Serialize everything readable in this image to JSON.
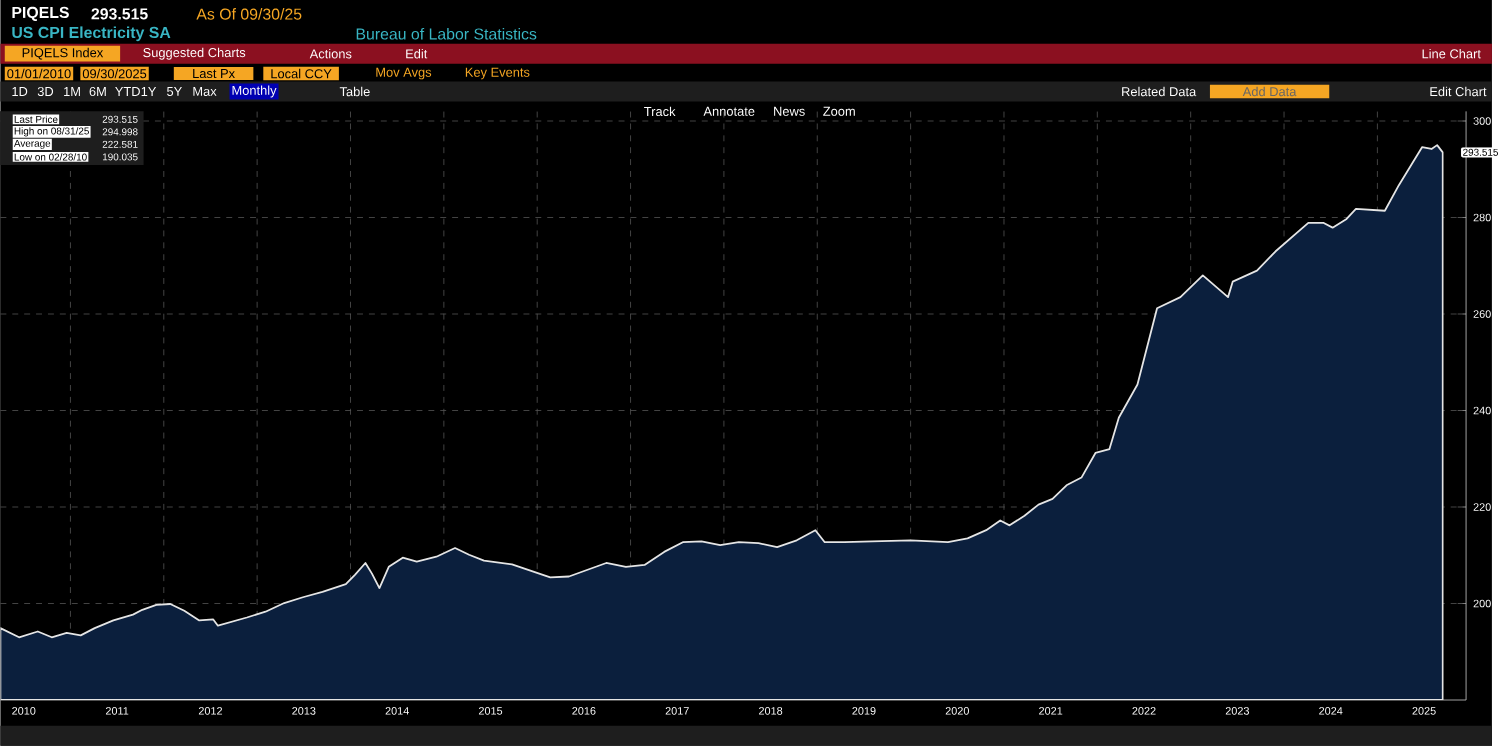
{
  "chart_data": {
    "type": "area",
    "title": "US CPI Electricity SA",
    "annotations": [
      "PIQELS",
      "293.515",
      "As Of 09/30/25",
      "Bureau of Labor Statistics",
      "PIQELS Index",
      "Suggested Charts",
      "Actions",
      "Edit",
      "Line Chart",
      "01/01/2010",
      "09/30/2025",
      "Last Px",
      "Local CCY",
      "Mov Avgs",
      "Key Events",
      "1D",
      "3D",
      "1M",
      "6M",
      "YTD",
      "1Y",
      "5Y",
      "Max",
      "Monthly",
      "Table",
      "Track",
      "Annotate",
      "News",
      "Zoom",
      "Related Data",
      "Add Data",
      "Edit Chart",
      "Last Price",
      "293.515",
      "High on 08/31/25",
      "294.998",
      "Average",
      "222.581",
      "Low on 02/28/10",
      "190.035",
      {
        "text": "293.515",
        "x": 2025.7,
        "y": 293.515
      }
    ],
    "series": [
      {
        "color": "#0b1f3d",
        "x": [
          2010.25,
          2010.45,
          2010.65,
          2010.8,
          2010.96,
          2011.11,
          2011.26,
          2011.46,
          2011.67,
          2011.77,
          2011.92,
          2012.07,
          2012.22,
          2012.38,
          2012.53,
          2012.58,
          2012.89,
          2013.09,
          2013.29,
          2013.49,
          2013.7,
          2013.95,
          2014.05,
          2014.16,
          2014.23,
          2014.31,
          2014.41,
          2014.56,
          2014.71,
          2014.92,
          2015.12,
          2015.27,
          2015.43,
          2015.73,
          2016.14,
          2016.34,
          2016.74,
          2016.95,
          2017.15,
          2017.36,
          2017.56,
          2017.76,
          2017.96,
          2018.16,
          2018.37,
          2018.57,
          2018.78,
          2018.98,
          2019.08,
          2019.29,
          2019.59,
          2020.0,
          2020.4,
          2020.61,
          2020.81,
          2020.96,
          2021.06,
          2021.22,
          2021.37,
          2021.52,
          2021.67,
          2021.83,
          2021.98,
          2022.13,
          2022.23,
          2022.43,
          2022.64,
          2022.89,
          2023.13,
          2023.4,
          2023.45,
          2023.71,
          2023.91,
          2024.26,
          2024.42,
          2024.52,
          2024.67,
          2024.77,
          2025.08,
          2025.23,
          2025.48,
          2025.58,
          2025.64,
          2025.7
        ],
        "values": [
          194.9,
          193.0,
          194.2,
          193.0,
          193.9,
          193.4,
          194.9,
          196.5,
          197.7,
          198.7,
          199.7,
          199.9,
          198.5,
          196.5,
          196.7,
          195.4,
          197.1,
          198.3,
          200.1,
          201.3,
          202.4,
          204.0,
          206.0,
          208.4,
          206.2,
          203.2,
          207.6,
          209.5,
          208.7,
          209.7,
          211.5,
          210.1,
          208.9,
          208.1,
          205.4,
          205.6,
          208.4,
          207.6,
          208.0,
          210.7,
          212.7,
          212.9,
          212.1,
          212.7,
          212.5,
          211.7,
          213.1,
          215.2,
          212.7,
          212.7,
          212.9,
          213.1,
          212.7,
          213.5,
          215.2,
          217.2,
          216.2,
          218.2,
          220.5,
          221.7,
          224.5,
          226.1,
          231.2,
          232.0,
          238.5,
          245.4,
          261.2,
          263.5,
          268.0,
          263.5,
          266.7,
          269.0,
          273.0,
          278.9,
          278.9,
          277.9,
          279.7,
          281.8,
          281.4,
          286.7,
          294.6,
          294.2,
          295.0,
          293.5
        ]
      }
    ],
    "xlim": [
      2010.25,
      2025.95
    ],
    "ylim": [
      180,
      302
    ],
    "xticks": [
      {
        "value": 2010.5,
        "label": "2010"
      },
      {
        "value": 2011.5,
        "label": "2011"
      },
      {
        "value": 2012.5,
        "label": "2012"
      },
      {
        "value": 2013.5,
        "label": "2013"
      },
      {
        "value": 2014.5,
        "label": "2014"
      },
      {
        "value": 2015.5,
        "label": "2015"
      },
      {
        "value": 2016.5,
        "label": "2016"
      },
      {
        "value": 2017.5,
        "label": "2017"
      },
      {
        "value": 2018.5,
        "label": "2018"
      },
      {
        "value": 2019.5,
        "label": "2019"
      },
      {
        "value": 2020.5,
        "label": "2020"
      },
      {
        "value": 2021.5,
        "label": "2021"
      },
      {
        "value": 2022.5,
        "label": "2022"
      },
      {
        "value": 2023.5,
        "label": "2023"
      },
      {
        "value": 2024.5,
        "label": "2024"
      },
      {
        "value": 2025.5,
        "label": "2025"
      },
      {
        "value": 2011,
        "label": null
      },
      {
        "value": 2012,
        "label": null
      },
      {
        "value": 2013,
        "label": null
      },
      {
        "value": 2014,
        "label": null
      },
      {
        "value": 2015,
        "label": null
      },
      {
        "value": 2016,
        "label": null
      },
      {
        "value": 2017,
        "label": null
      },
      {
        "value": 2018,
        "label": null
      },
      {
        "value": 2019,
        "label": null
      },
      {
        "value": 2020,
        "label": null
      },
      {
        "value": 2021,
        "label": null
      },
      {
        "value": 2022,
        "label": null
      },
      {
        "value": 2023,
        "label": null
      },
      {
        "value": 2024,
        "label": null
      },
      {
        "value": 2025,
        "label": null
      }
    ],
    "yticks": [
      200,
      220,
      240,
      260,
      280,
      300
    ],
    "grid": true
  }
}
